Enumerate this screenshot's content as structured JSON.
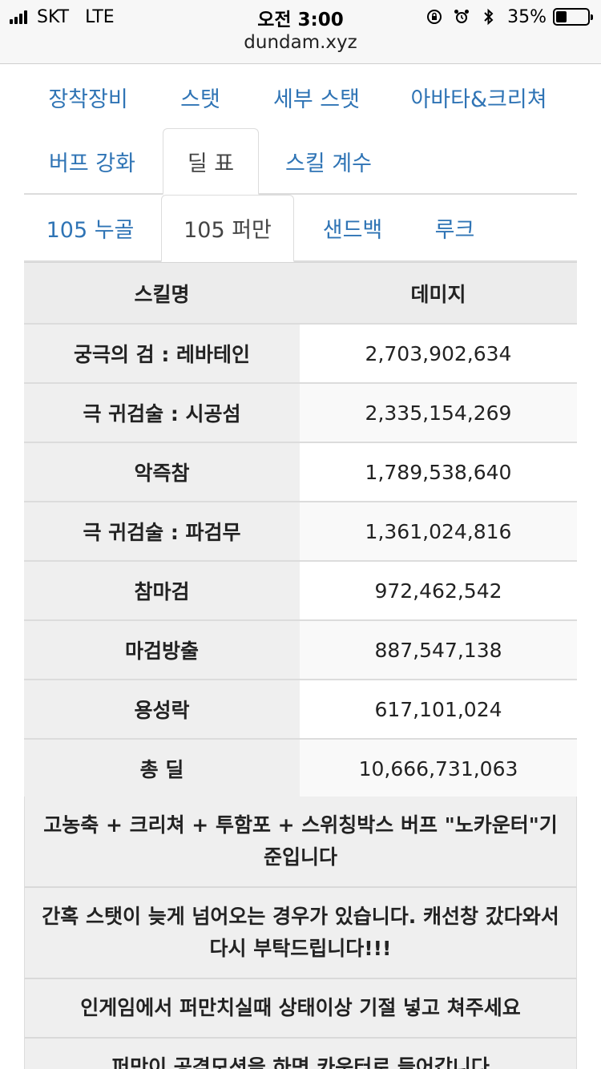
{
  "status_bar": {
    "carrier": "SKT",
    "network": "LTE",
    "time": "오전 3:00",
    "battery": "35%",
    "battery_level": 0.35,
    "url": "dundam.xyz"
  },
  "nav_tabs_row1": [
    "장착장비",
    "스탯",
    "세부 스탯",
    "아바타&크리쳐"
  ],
  "nav_tabs_row2": [
    "버프 강화",
    "딜 표",
    "스킬 계수"
  ],
  "nav_tabs_row2_active": "딜 표",
  "sub_tabs": [
    "105 누골",
    "105 퍼만",
    "샌드백",
    "루크"
  ],
  "sub_tabs_active": "105 퍼만",
  "table": {
    "headers": [
      "스킬명",
      "데미지"
    ],
    "rows": [
      {
        "name": "궁극의 검 : 레바테인",
        "damage": "2,703,902,634"
      },
      {
        "name": "극 귀검술 : 시공섬",
        "damage": "2,335,154,269"
      },
      {
        "name": "악즉참",
        "damage": "1,789,538,640"
      },
      {
        "name": "극 귀검술 : 파검무",
        "damage": "1,361,024,816"
      },
      {
        "name": "참마검",
        "damage": "972,462,542"
      },
      {
        "name": "마검방출",
        "damage": "887,547,138"
      },
      {
        "name": "용성락",
        "damage": "617,101,024"
      },
      {
        "name": "총 딜",
        "damage": "10,666,731,063"
      }
    ]
  },
  "notes": [
    "고농축 + 크리쳐 + 투함포 + 스위칭박스 버프 \"노카운터\"기준입니다",
    "간혹 스탯이 늦게 넘어오는 경우가 있습니다. 캐선창 갔다와서 다시 부탁드립니다!!!",
    "인게임에서 퍼만치실때 상태이상 기절 넣고 쳐주세요",
    "퍼만이 공격모션을 하면 카운터로 들어갑니다"
  ]
}
